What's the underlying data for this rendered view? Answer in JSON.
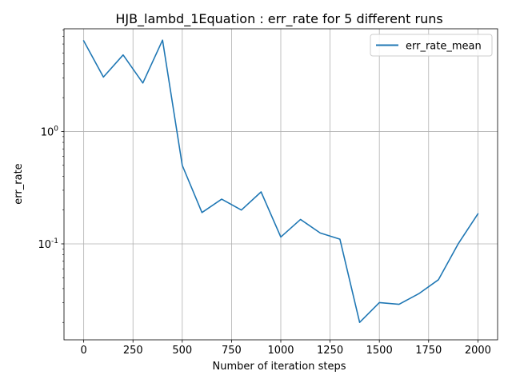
{
  "chart_data": {
    "type": "line",
    "title": "HJB_lambd_1Equation : err_rate for 5 different runs",
    "xlabel": "Number of iteration steps",
    "ylabel": "err_rate",
    "yscale": "log",
    "xlim": [
      -100,
      2100
    ],
    "ylim": [
      0.014,
      8.2
    ],
    "xticks": [
      0,
      250,
      500,
      750,
      1000,
      1250,
      1500,
      1750,
      2000
    ],
    "xtick_labels": [
      "0",
      "250",
      "500",
      "750",
      "1000",
      "1250",
      "1500",
      "1750",
      "2000"
    ],
    "yticks_major": [
      0.1,
      1
    ],
    "ytick_labels_major": [
      "10^-1",
      "10^0"
    ],
    "grid": true,
    "legend_position": "top-right",
    "series": [
      {
        "name": "err_rate_mean",
        "color": "#1f77b4",
        "x": [
          0,
          100,
          200,
          300,
          400,
          500,
          600,
          700,
          800,
          900,
          1000,
          1100,
          1200,
          1300,
          1400,
          1500,
          1600,
          1700,
          1800,
          1900,
          2000
        ],
        "y": [
          6.4,
          3.05,
          4.8,
          2.7,
          6.5,
          0.5,
          0.19,
          0.25,
          0.2,
          0.29,
          0.115,
          0.165,
          0.125,
          0.11,
          0.02,
          0.03,
          0.029,
          0.036,
          0.048,
          0.1,
          0.185
        ]
      }
    ]
  }
}
